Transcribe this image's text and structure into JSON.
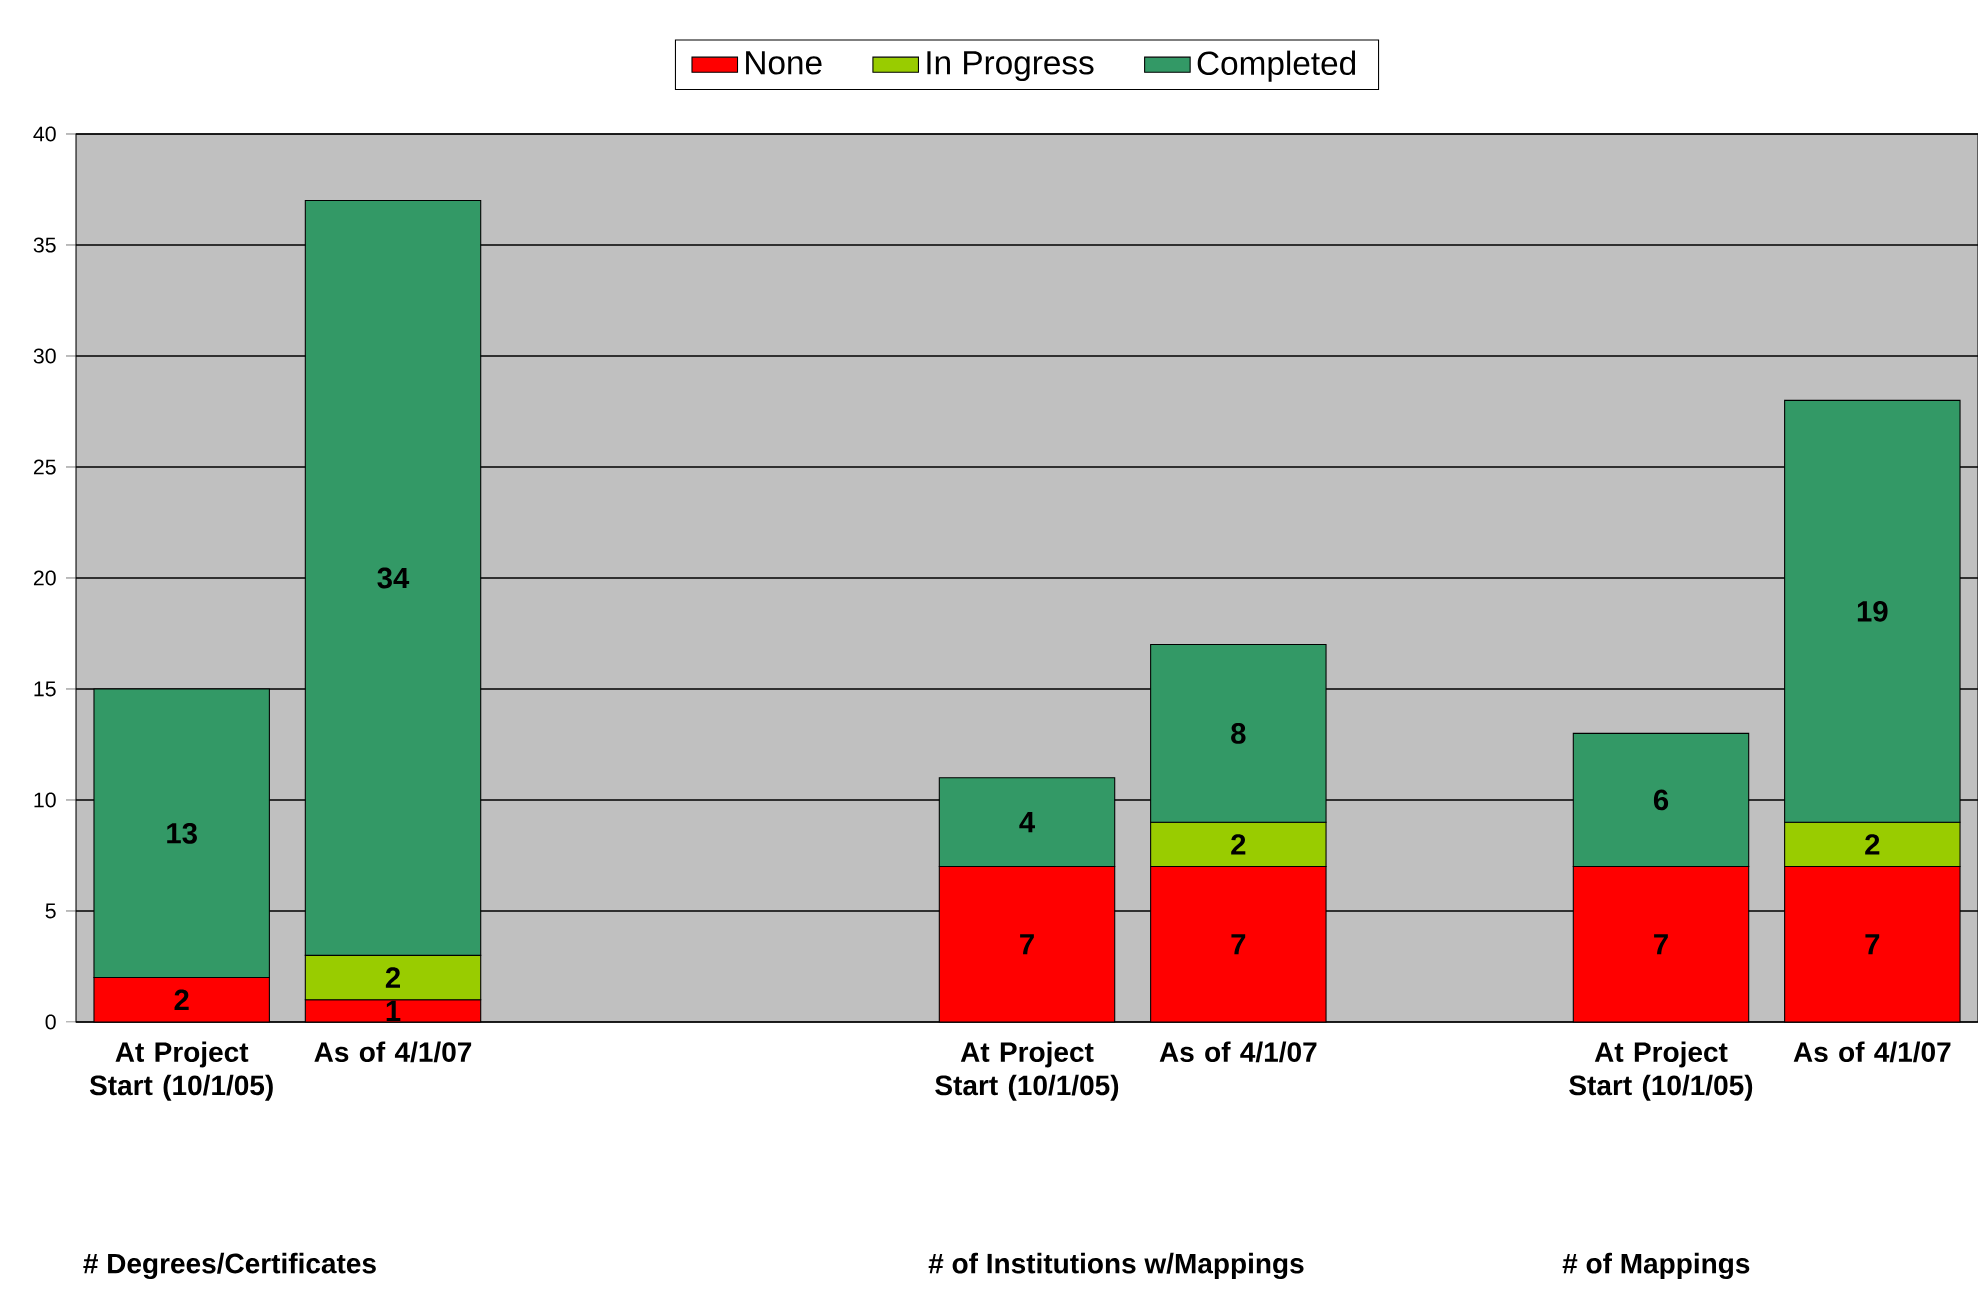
{
  "chart_data": {
    "type": "bar",
    "stacked": true,
    "categories": [
      "At Project Start (10/1/05)",
      "As of 4/1/07",
      null,
      null,
      "At Project Start (10/1/05)",
      "As of 4/1/07",
      null,
      "At Project Start (10/1/05)",
      "As of 4/1/07"
    ],
    "series": [
      {
        "name": "None",
        "color": "#ff0000",
        "values": [
          2,
          1,
          null,
          null,
          7,
          7,
          null,
          7,
          7
        ]
      },
      {
        "name": "In Progress",
        "color": "#99cc00",
        "values": [
          null,
          2,
          null,
          null,
          null,
          2,
          null,
          null,
          2
        ]
      },
      {
        "name": "Completed",
        "color": "#339966",
        "values": [
          13,
          34,
          null,
          null,
          4,
          8,
          null,
          6,
          19
        ]
      }
    ],
    "ylim": [
      0,
      40
    ],
    "yticks": [
      0,
      5,
      10,
      15,
      20,
      25,
      30,
      35,
      40
    ],
    "grid": "y",
    "legend": "top",
    "data_labels": true,
    "annotations": [
      "# Degrees/Certificates",
      "# of Institutions w/Mappings",
      "# of Mappings"
    ]
  }
}
